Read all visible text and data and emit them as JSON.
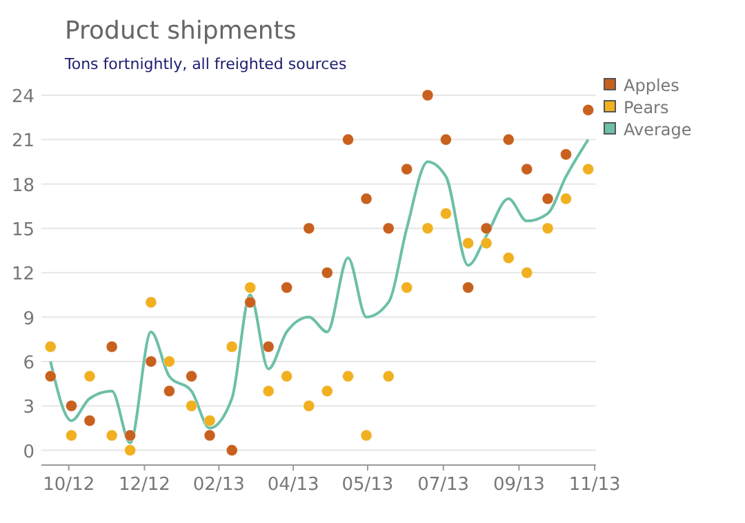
{
  "chart_data": {
    "type": "scatter",
    "title": "Product shipments",
    "subtitle": "Tons fortnightly, all freighted sources",
    "x": [
      "2012-09-15",
      "2012-10-01",
      "2012-10-15",
      "2012-11-01",
      "2012-11-15",
      "2012-12-01",
      "2012-12-15",
      "2013-01-01",
      "2013-01-15",
      "2013-02-01",
      "2013-02-15",
      "2013-03-01",
      "2013-03-15",
      "2013-04-01",
      "2013-04-15",
      "2013-05-01",
      "2013-05-15",
      "2013-06-01",
      "2013-06-15",
      "2013-07-01",
      "2013-07-15",
      "2013-08-01",
      "2013-08-15",
      "2013-09-01",
      "2013-09-15",
      "2013-10-01",
      "2013-10-15",
      "2013-11-01"
    ],
    "series": [
      {
        "name": "Apples",
        "color": "#c8601e",
        "values": [
          5,
          3,
          2,
          7,
          1,
          6,
          4,
          5,
          1,
          0,
          10,
          7,
          11,
          15,
          12,
          21,
          17,
          15,
          19,
          24,
          21,
          11,
          15,
          21,
          19,
          17,
          20,
          23
        ]
      },
      {
        "name": "Pears",
        "color": "#f0b020",
        "values": [
          7,
          1,
          5,
          1,
          0,
          10,
          6,
          3,
          2,
          7,
          11,
          4,
          5,
          3,
          4,
          5,
          1,
          5,
          11,
          15,
          16,
          14,
          14,
          13,
          12,
          15,
          17,
          19
        ]
      },
      {
        "name": "Average",
        "type": "line",
        "marker": "none",
        "color": "#6cbfa8",
        "values": [
          6,
          2,
          3.5,
          4,
          0.5,
          8,
          5,
          4,
          1.5,
          3.5,
          10.5,
          5.5,
          8,
          9,
          8,
          13,
          9,
          10,
          15,
          19.5,
          18.5,
          12.5,
          14.5,
          17,
          15.5,
          16,
          18.5,
          21
        ]
      }
    ],
    "xlim": [
      "2012-09-08",
      "2013-11-07"
    ],
    "xticks": [
      {
        "value": "2012-09-29",
        "label": "10/12"
      },
      {
        "value": "2012-11-26",
        "label": "12/12"
      },
      {
        "value": "2013-01-22",
        "label": "02/13"
      },
      {
        "value": "2013-03-20",
        "label": "04/13"
      },
      {
        "value": "2013-05-16",
        "label": "05/13"
      },
      {
        "value": "2013-07-13",
        "label": "07/13"
      },
      {
        "value": "2013-09-09",
        "label": "09/13"
      },
      {
        "value": "2013-11-06",
        "label": "11/13"
      }
    ],
    "ylim": [
      -1,
      24
    ],
    "yticks": [
      0,
      3,
      6,
      9,
      12,
      15,
      18,
      21,
      24
    ],
    "grid": "y",
    "legend": "top right",
    "marker": "circle"
  }
}
